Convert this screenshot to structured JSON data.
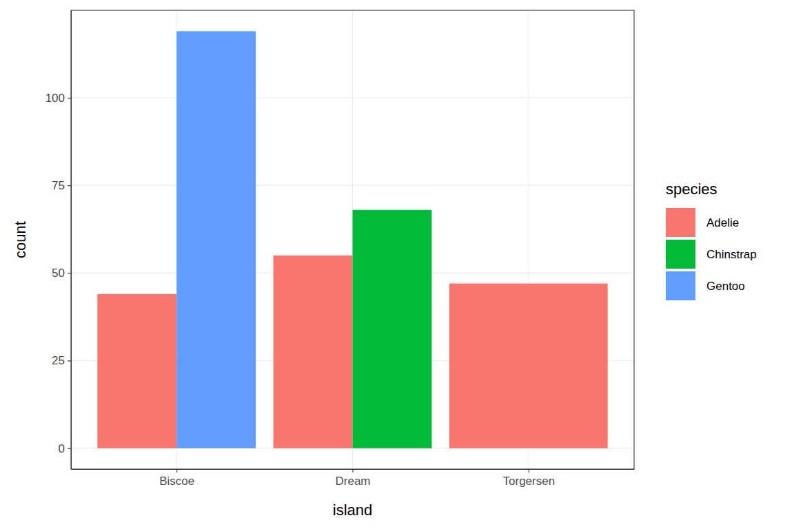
{
  "chart_data": {
    "type": "bar",
    "x_label": "island",
    "y_label": "count",
    "legend_title": "species",
    "categories": [
      "Biscoe",
      "Dream",
      "Torgersen"
    ],
    "series": [
      {
        "name": "Adelie",
        "color": "#F8766D",
        "values": [
          44,
          55,
          47
        ]
      },
      {
        "name": "Chinstrap",
        "color": "#00BA38",
        "values": [
          null,
          68,
          null
        ]
      },
      {
        "name": "Gentoo",
        "color": "#619CFF",
        "values": [
          119,
          null,
          null
        ]
      }
    ],
    "ylim": [
      -5.95,
      124.95
    ],
    "yticks": [
      0,
      25,
      50,
      75,
      100
    ],
    "grid": true,
    "legend": "right"
  }
}
